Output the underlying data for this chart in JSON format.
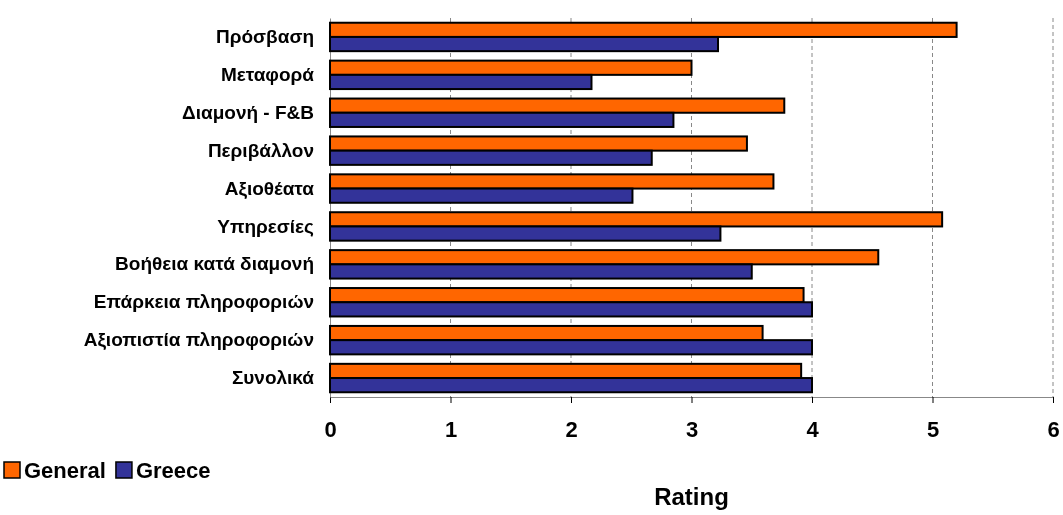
{
  "chart_data": {
    "type": "bar",
    "orientation": "horizontal",
    "xlabel": "Rating",
    "categories": [
      "Πρόσβαση",
      "Μεταφορά",
      "Διαμονή - F&B",
      "Περιβάλλον",
      "Αξιοθέατα",
      "Υπηρεσίες",
      "Βοήθεια κατά διαμονή",
      "Επάρκεια πληροφοριών",
      "Αξιοπιστία πληροφοριών",
      "Συνολικά"
    ],
    "series": [
      {
        "name": "General",
        "color": "#ff6600",
        "values": [
          5.2,
          3.0,
          3.77,
          3.46,
          3.68,
          5.08,
          4.55,
          3.93,
          3.59,
          3.91
        ]
      },
      {
        "name": "Greece",
        "color": "#333399",
        "values": [
          3.22,
          2.17,
          2.85,
          2.67,
          2.51,
          3.24,
          3.5,
          4.0,
          4.0,
          4.0
        ]
      }
    ],
    "xlim": [
      0,
      6
    ],
    "xticks": [
      0,
      1,
      2,
      3,
      4,
      5,
      6
    ],
    "grid": "x",
    "legend": "bottom left"
  }
}
